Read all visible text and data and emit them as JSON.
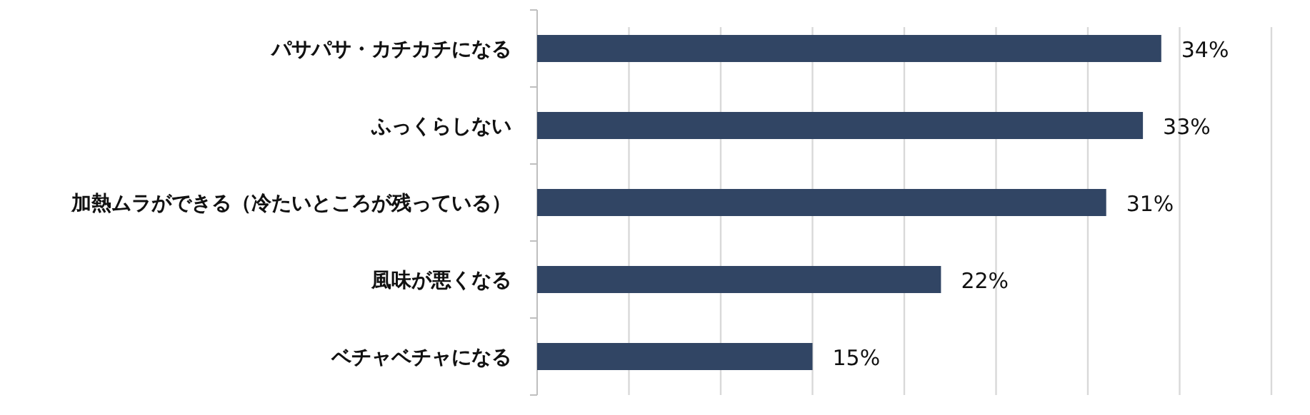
{
  "chart_data": {
    "type": "bar",
    "orientation": "horizontal",
    "categories": [
      "パサパサ・カチカチになる",
      "ふっくらしない",
      "加熱ムラができる（冷たいところが残っている）",
      "風味が悪くなる",
      "ベチャベチャになる"
    ],
    "values": [
      34,
      33,
      31,
      22,
      15
    ],
    "color": "#314564",
    "value_labels": [
      "34%",
      "33%",
      "31%",
      "22%",
      "15%"
    ],
    "xlim": [
      0,
      40
    ],
    "xticks": [
      {
        "value": 0,
        "label": null
      },
      {
        "value": 5,
        "label": null
      },
      {
        "value": 10,
        "label": null
      },
      {
        "value": 15,
        "label": null
      },
      {
        "value": 20,
        "label": null
      },
      {
        "value": 25,
        "label": null
      },
      {
        "value": 30,
        "label": null
      },
      {
        "value": 35,
        "label": null
      },
      {
        "value": 40,
        "label": null
      }
    ],
    "grid": "x",
    "tick_labels": "y"
  }
}
